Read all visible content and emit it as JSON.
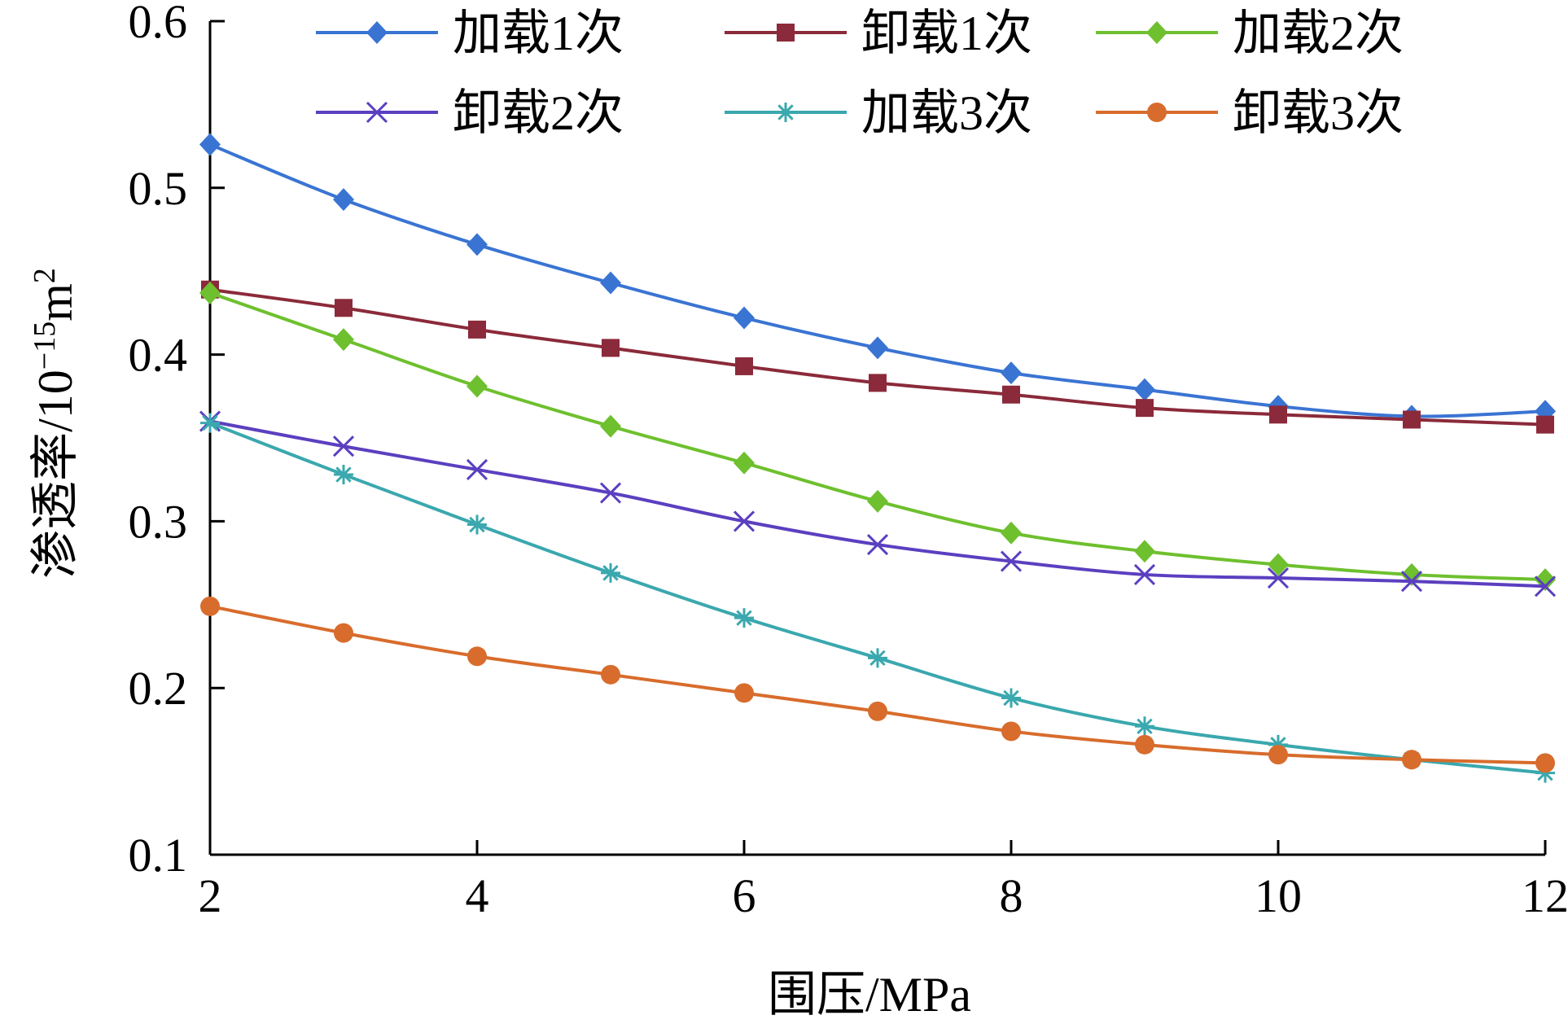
{
  "chart_data": {
    "type": "line",
    "title": "",
    "xlabel": "围压/MPa",
    "ylabel_main": "渗透率/10",
    "ylabel_exp": "−15",
    "ylabel_unit": "m",
    "ylabel_unit_exp": "2",
    "xlim": [
      2,
      12
    ],
    "ylim": [
      0.1,
      0.6
    ],
    "xticks": [
      2,
      4,
      6,
      8,
      10,
      12
    ],
    "yticks": [
      0.1,
      0.2,
      0.3,
      0.4,
      0.5,
      0.6
    ],
    "grid": false,
    "legend_position": "top",
    "x": [
      2,
      3,
      4,
      5,
      6,
      7,
      8,
      9,
      10,
      11,
      12
    ],
    "series": [
      {
        "name": "加载1次",
        "color": "#3a74d3",
        "marker": "diamond",
        "values": [
          0.526,
          0.493,
          0.466,
          0.443,
          0.422,
          0.404,
          0.389,
          0.379,
          0.369,
          0.363,
          0.366
        ]
      },
      {
        "name": "卸载1次",
        "color": "#8b2a3a",
        "marker": "square",
        "values": [
          0.439,
          0.428,
          0.415,
          0.404,
          0.393,
          0.383,
          0.376,
          0.368,
          0.364,
          0.361,
          0.358
        ]
      },
      {
        "name": "加载2次",
        "color": "#6ec02e",
        "marker": "diamond",
        "values": [
          0.437,
          0.409,
          0.381,
          0.357,
          0.335,
          0.312,
          0.293,
          0.282,
          0.274,
          0.268,
          0.265
        ]
      },
      {
        "name": "卸载2次",
        "color": "#5b3fc0",
        "marker": "x",
        "values": [
          0.36,
          0.345,
          0.331,
          0.317,
          0.3,
          0.286,
          0.276,
          0.268,
          0.266,
          0.264,
          0.261
        ]
      },
      {
        "name": "加载3次",
        "color": "#3aa8ae",
        "marker": "star",
        "values": [
          0.359,
          0.328,
          0.298,
          0.269,
          0.242,
          0.218,
          0.194,
          0.177,
          0.166,
          0.157,
          0.149
        ]
      },
      {
        "name": "卸载3次",
        "color": "#d86c2c",
        "marker": "circle",
        "values": [
          0.249,
          0.233,
          0.219,
          0.208,
          0.197,
          0.186,
          0.174,
          0.166,
          0.16,
          0.157,
          0.155
        ]
      }
    ]
  }
}
